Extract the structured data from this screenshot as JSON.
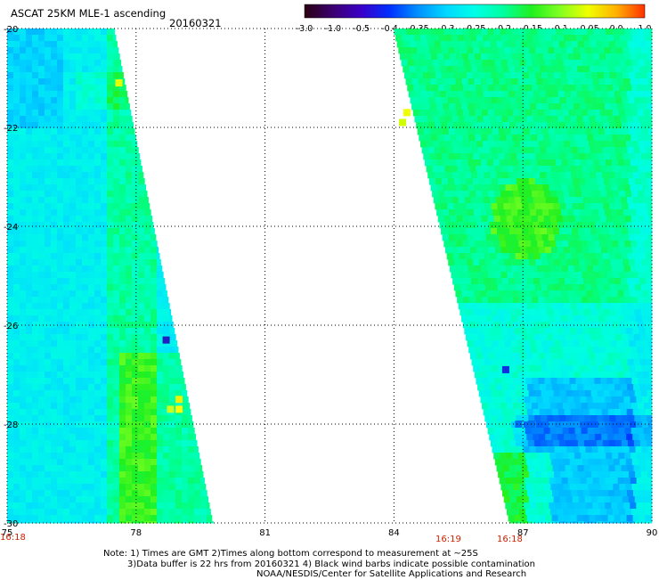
{
  "header": {
    "title": "ASCAT 25KM MLE-1 ascending",
    "date": "20160321"
  },
  "colorbar": {
    "labels": [
      "-3.0",
      "-1.0",
      "-0.5",
      "-0.4",
      "-0.35",
      "-0.3",
      "-0.25",
      "-0.2",
      "-0.15",
      "-0.1",
      "-0.05",
      "0.0",
      "1.0"
    ],
    "colors": [
      "#2a0010",
      "#3c0070",
      "#3a00c8",
      "#0030ff",
      "#0090ff",
      "#00d8ff",
      "#00ffe8",
      "#00ffa0",
      "#20f020",
      "#80ff20",
      "#f0ff00",
      "#ffb000",
      "#ff3000"
    ]
  },
  "chart_data": {
    "type": "heatmap",
    "title": "ASCAT 25KM MLE-1 ascending",
    "xlim": [
      75,
      90
    ],
    "ylim": [
      -30,
      -20
    ],
    "x_ticks": [
      "75",
      "78",
      "81",
      "84",
      "87",
      "90"
    ],
    "y_ticks": [
      "-20",
      "-22",
      "-24",
      "-26",
      "-28",
      "-30"
    ],
    "swaths": [
      {
        "name": "west swath",
        "west_edge_lon": 75,
        "east_edge_lon_top": 77.5,
        "east_edge_lon_bottom": 79.8,
        "dominant_value_range": [
          -0.3,
          -0.2
        ],
        "features": [
          "greener band near 77.5-78.2 E",
          "yellow pixels near 77.6E -21.2",
          "dark blue pixel near 78.7E -26.3",
          "yellow patch near 79.0E -27.6"
        ]
      },
      {
        "name": "east swath",
        "west_edge_lon_top": 84.0,
        "west_edge_lon_bottom": 86.7,
        "east_edge_lon": 90,
        "dominant_value_range": [
          -0.35,
          -0.15
        ],
        "features": [
          "yellow pixel near 84.3E -21.7",
          "dark green blob near 87.0E -23.8",
          "blue region near 87.5-89E -28",
          "dark blue pixel near 86.6E -26.9"
        ]
      }
    ],
    "times": [
      {
        "label": "16:18",
        "lon": 75
      },
      {
        "label": "16:19",
        "lon": 86.2
      },
      {
        "label": "16:18",
        "lon": 87.0
      }
    ]
  },
  "notes": {
    "line1": "Note: 1) Times are GMT 2)Times along bottom correspond to measurement at ~25S",
    "line2": "3)Data buffer is 22 hrs from 20160321 4) Black wind barbs indicate possible contamination",
    "line3": "NOAA/NESDIS/Center for Satellite Applications and Research"
  }
}
